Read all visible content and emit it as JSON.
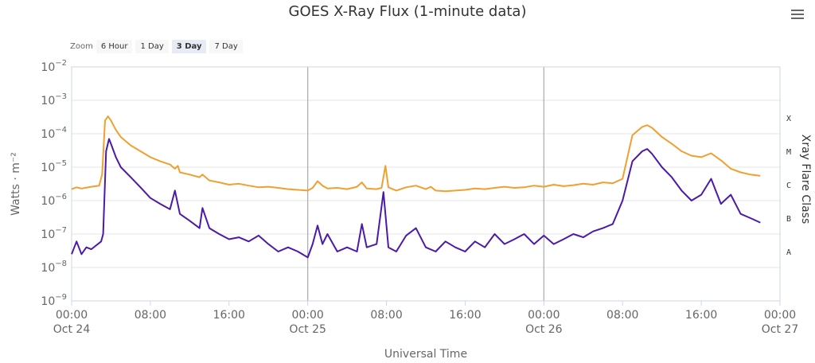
{
  "header": {
    "title": "GOES X-Ray Flux (1-minute data)"
  },
  "zoom": {
    "label": "Zoom",
    "buttons": [
      {
        "label": "6 Hour",
        "active": false
      },
      {
        "label": "1 Day",
        "active": false
      },
      {
        "label": "3 Day",
        "active": true
      },
      {
        "label": "7 Day",
        "active": false
      }
    ]
  },
  "chart_data": {
    "type": "line",
    "title": "GOES X-Ray Flux (1-minute data)",
    "xlabel": "Universal Time",
    "ylabel": "Watts · m⁻²",
    "y2label": "Xray Flare Class",
    "yscale": "log",
    "ylim": [
      1e-09,
      0.01
    ],
    "xlim_hours": [
      0,
      72
    ],
    "y_ticks": [
      {
        "base": "10",
        "exp": "−9",
        "value": 1e-09
      },
      {
        "base": "10",
        "exp": "−8",
        "value": 1e-08
      },
      {
        "base": "10",
        "exp": "−7",
        "value": 1e-07
      },
      {
        "base": "10",
        "exp": "−6",
        "value": 1e-06
      },
      {
        "base": "10",
        "exp": "−5",
        "value": 1e-05
      },
      {
        "base": "10",
        "exp": "−4",
        "value": 0.0001
      },
      {
        "base": "10",
        "exp": "−3",
        "value": 0.001
      },
      {
        "base": "10",
        "exp": "−2",
        "value": 0.01
      }
    ],
    "x_ticks": [
      {
        "hour": 0,
        "time": "00:00",
        "date": "Oct 24"
      },
      {
        "hour": 8,
        "time": "08:00",
        "date": ""
      },
      {
        "hour": 16,
        "time": "16:00",
        "date": ""
      },
      {
        "hour": 24,
        "time": "00:00",
        "date": "Oct 25"
      },
      {
        "hour": 32,
        "time": "08:00",
        "date": ""
      },
      {
        "hour": 40,
        "time": "16:00",
        "date": ""
      },
      {
        "hour": 48,
        "time": "00:00",
        "date": "Oct 26"
      },
      {
        "hour": 56,
        "time": "08:00",
        "date": ""
      },
      {
        "hour": 64,
        "time": "16:00",
        "date": ""
      },
      {
        "hour": 72,
        "time": "00:00",
        "date": "Oct 27"
      }
    ],
    "day_boundaries_hours": [
      24,
      48
    ],
    "flare_classes": [
      {
        "label": "A",
        "value": 3e-08
      },
      {
        "label": "B",
        "value": 3e-07
      },
      {
        "label": "C",
        "value": 3e-06
      },
      {
        "label": "M",
        "value": 3e-05
      },
      {
        "label": "X",
        "value": 0.0003
      }
    ],
    "series": [
      {
        "color": "#f0a030",
        "points": [
          [
            0,
            2.2e-06
          ],
          [
            0.5,
            2.5e-06
          ],
          [
            1,
            2.3e-06
          ],
          [
            2,
            2.6e-06
          ],
          [
            2.8,
            2.8e-06
          ],
          [
            3.1,
            6e-06
          ],
          [
            3.4,
            0.00025
          ],
          [
            3.7,
            0.00033
          ],
          [
            4,
            0.00025
          ],
          [
            4.5,
            0.00013
          ],
          [
            5,
            8e-05
          ],
          [
            6,
            4.5e-05
          ],
          [
            7,
            3e-05
          ],
          [
            8,
            2e-05
          ],
          [
            9,
            1.5e-05
          ],
          [
            10,
            1.2e-05
          ],
          [
            10.5,
            9e-06
          ],
          [
            10.8,
            1.1e-05
          ],
          [
            11,
            7e-06
          ],
          [
            12,
            6e-06
          ],
          [
            13,
            5e-06
          ],
          [
            13.3,
            6e-06
          ],
          [
            14,
            4e-06
          ],
          [
            15,
            3.5e-06
          ],
          [
            16,
            3e-06
          ],
          [
            17,
            3.2e-06
          ],
          [
            18,
            2.8e-06
          ],
          [
            19,
            2.5e-06
          ],
          [
            20,
            2.6e-06
          ],
          [
            21,
            2.4e-06
          ],
          [
            22,
            2.2e-06
          ],
          [
            23,
            2.1e-06
          ],
          [
            24,
            2e-06
          ],
          [
            24.5,
            2.4e-06
          ],
          [
            25,
            3.8e-06
          ],
          [
            25.5,
            2.8e-06
          ],
          [
            26,
            2.3e-06
          ],
          [
            27,
            2.4e-06
          ],
          [
            28,
            2.2e-06
          ],
          [
            29,
            2.6e-06
          ],
          [
            29.5,
            3.5e-06
          ],
          [
            30,
            2.3e-06
          ],
          [
            31,
            2.2e-06
          ],
          [
            31.5,
            2.4e-06
          ],
          [
            31.9,
            1.1e-05
          ],
          [
            32.2,
            2.5e-06
          ],
          [
            33,
            2e-06
          ],
          [
            34,
            2.5e-06
          ],
          [
            35,
            2.8e-06
          ],
          [
            36,
            2.2e-06
          ],
          [
            36.5,
            2.6e-06
          ],
          [
            37,
            2e-06
          ],
          [
            38,
            1.9e-06
          ],
          [
            39,
            2e-06
          ],
          [
            40,
            2.1e-06
          ],
          [
            41,
            2.3e-06
          ],
          [
            42,
            2.2e-06
          ],
          [
            43,
            2.4e-06
          ],
          [
            44,
            2.6e-06
          ],
          [
            45,
            2.4e-06
          ],
          [
            46,
            2.5e-06
          ],
          [
            47,
            2.8e-06
          ],
          [
            48,
            2.6e-06
          ],
          [
            49,
            3e-06
          ],
          [
            50,
            2.7e-06
          ],
          [
            51,
            2.9e-06
          ],
          [
            52,
            3.2e-06
          ],
          [
            53,
            3e-06
          ],
          [
            54,
            3.5e-06
          ],
          [
            55,
            3.3e-06
          ],
          [
            56,
            4.5e-06
          ],
          [
            57,
            9e-05
          ],
          [
            58,
            0.00016
          ],
          [
            58.5,
            0.00018
          ],
          [
            59,
            0.00015
          ],
          [
            60,
            8e-05
          ],
          [
            61,
            5e-05
          ],
          [
            62,
            3e-05
          ],
          [
            63,
            2.2e-05
          ],
          [
            64,
            2e-05
          ],
          [
            65,
            2.6e-05
          ],
          [
            66,
            1.6e-05
          ],
          [
            67,
            9e-06
          ],
          [
            68,
            7e-06
          ],
          [
            69,
            6e-06
          ],
          [
            70,
            5.5e-06
          ]
        ]
      },
      {
        "color": "#4b1aa8",
        "points": [
          [
            0,
            2.5e-08
          ],
          [
            0.5,
            6e-08
          ],
          [
            1,
            2.5e-08
          ],
          [
            1.5,
            4e-08
          ],
          [
            2,
            3.5e-08
          ],
          [
            3,
            6e-08
          ],
          [
            3.2,
            1e-07
          ],
          [
            3.5,
            3e-05
          ],
          [
            3.8,
            7e-05
          ],
          [
            4,
            5e-05
          ],
          [
            4.5,
            2e-05
          ],
          [
            5,
            1e-05
          ],
          [
            6,
            5e-06
          ],
          [
            7,
            2.5e-06
          ],
          [
            8,
            1.2e-06
          ],
          [
            9,
            8e-07
          ],
          [
            10,
            5.5e-07
          ],
          [
            10.5,
            2e-06
          ],
          [
            11,
            4e-07
          ],
          [
            12,
            2.5e-07
          ],
          [
            13,
            1.5e-07
          ],
          [
            13.3,
            6e-07
          ],
          [
            14,
            1.5e-07
          ],
          [
            15,
            1e-07
          ],
          [
            16,
            7e-08
          ],
          [
            17,
            8e-08
          ],
          [
            18,
            6e-08
          ],
          [
            19,
            9e-08
          ],
          [
            20,
            5e-08
          ],
          [
            21,
            3e-08
          ],
          [
            22,
            4e-08
          ],
          [
            23,
            3e-08
          ],
          [
            24,
            2e-08
          ],
          [
            24.5,
            5e-08
          ],
          [
            25,
            1.8e-07
          ],
          [
            25.5,
            5e-08
          ],
          [
            26,
            1e-07
          ],
          [
            27,
            3e-08
          ],
          [
            28,
            4e-08
          ],
          [
            29,
            3e-08
          ],
          [
            29.5,
            2e-07
          ],
          [
            30,
            4e-08
          ],
          [
            31,
            5e-08
          ],
          [
            31.7,
            1.8e-06
          ],
          [
            32.2,
            4e-08
          ],
          [
            33,
            3e-08
          ],
          [
            34,
            9e-08
          ],
          [
            35,
            1.5e-07
          ],
          [
            36,
            4e-08
          ],
          [
            37,
            3e-08
          ],
          [
            38,
            6e-08
          ],
          [
            39,
            4e-08
          ],
          [
            40,
            3e-08
          ],
          [
            41,
            6e-08
          ],
          [
            42,
            4e-08
          ],
          [
            43,
            1e-07
          ],
          [
            44,
            5e-08
          ],
          [
            45,
            7e-08
          ],
          [
            46,
            1e-07
          ],
          [
            47,
            5e-08
          ],
          [
            48,
            9e-08
          ],
          [
            49,
            5e-08
          ],
          [
            50,
            7e-08
          ],
          [
            51,
            1e-07
          ],
          [
            52,
            8e-08
          ],
          [
            53,
            1.2e-07
          ],
          [
            54,
            1.5e-07
          ],
          [
            55,
            2e-07
          ],
          [
            56,
            1e-06
          ],
          [
            57,
            1.5e-05
          ],
          [
            58,
            3e-05
          ],
          [
            58.5,
            3.5e-05
          ],
          [
            59,
            2.5e-05
          ],
          [
            60,
            1e-05
          ],
          [
            61,
            5e-06
          ],
          [
            62,
            2e-06
          ],
          [
            63,
            1e-06
          ],
          [
            64,
            1.5e-06
          ],
          [
            65,
            4.5e-06
          ],
          [
            66,
            8e-07
          ],
          [
            67,
            1.5e-06
          ],
          [
            68,
            4e-07
          ],
          [
            69,
            3e-07
          ],
          [
            70,
            2.2e-07
          ]
        ]
      }
    ]
  }
}
